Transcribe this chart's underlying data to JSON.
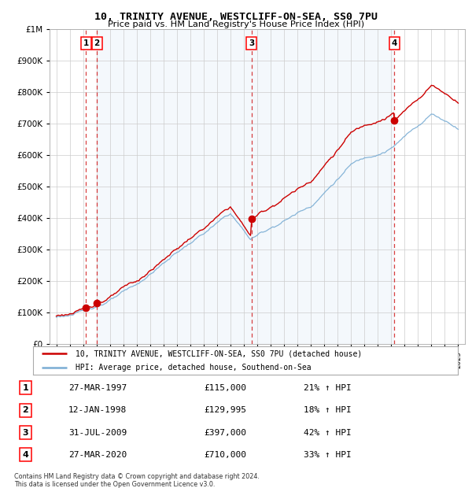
{
  "title": "10, TRINITY AVENUE, WESTCLIFF-ON-SEA, SS0 7PU",
  "subtitle": "Price paid vs. HM Land Registry's House Price Index (HPI)",
  "transactions": [
    {
      "num": 1,
      "date": "27-MAR-1997",
      "year": 1997.23,
      "price": 115000,
      "pct": "21% ↑ HPI"
    },
    {
      "num": 2,
      "date": "12-JAN-1998",
      "year": 1998.03,
      "price": 129995,
      "pct": "18% ↑ HPI"
    },
    {
      "num": 3,
      "date": "31-JUL-2009",
      "year": 2009.58,
      "price": 397000,
      "pct": "42% ↑ HPI"
    },
    {
      "num": 4,
      "date": "27-MAR-2020",
      "year": 2020.23,
      "price": 710000,
      "pct": "33% ↑ HPI"
    }
  ],
  "legend_line1": "10, TRINITY AVENUE, WESTCLIFF-ON-SEA, SS0 7PU (detached house)",
  "legend_line2": "HPI: Average price, detached house, Southend-on-Sea",
  "footer1": "Contains HM Land Registry data © Crown copyright and database right 2024.",
  "footer2": "This data is licensed under the Open Government Licence v3.0.",
  "table_rows": [
    [
      "1",
      "27-MAR-1997",
      "£115,000",
      "21% ↑ HPI"
    ],
    [
      "2",
      "12-JAN-1998",
      "£129,995",
      "18% ↑ HPI"
    ],
    [
      "3",
      "31-JUL-2009",
      "£397,000",
      "42% ↑ HPI"
    ],
    [
      "4",
      "27-MAR-2020",
      "£710,000",
      "33% ↑ HPI"
    ]
  ],
  "hpi_color": "#7aadd4",
  "price_color": "#cc0000",
  "bg_color": "#ffffff",
  "grid_color": "#cccccc",
  "highlight_color": "#ddeeff",
  "ylim": [
    0,
    1000000
  ],
  "xlim": [
    1994.5,
    2025.5
  ],
  "yticks": [
    0,
    100000,
    200000,
    300000,
    400000,
    500000,
    600000,
    700000,
    800000,
    900000,
    1000000
  ]
}
